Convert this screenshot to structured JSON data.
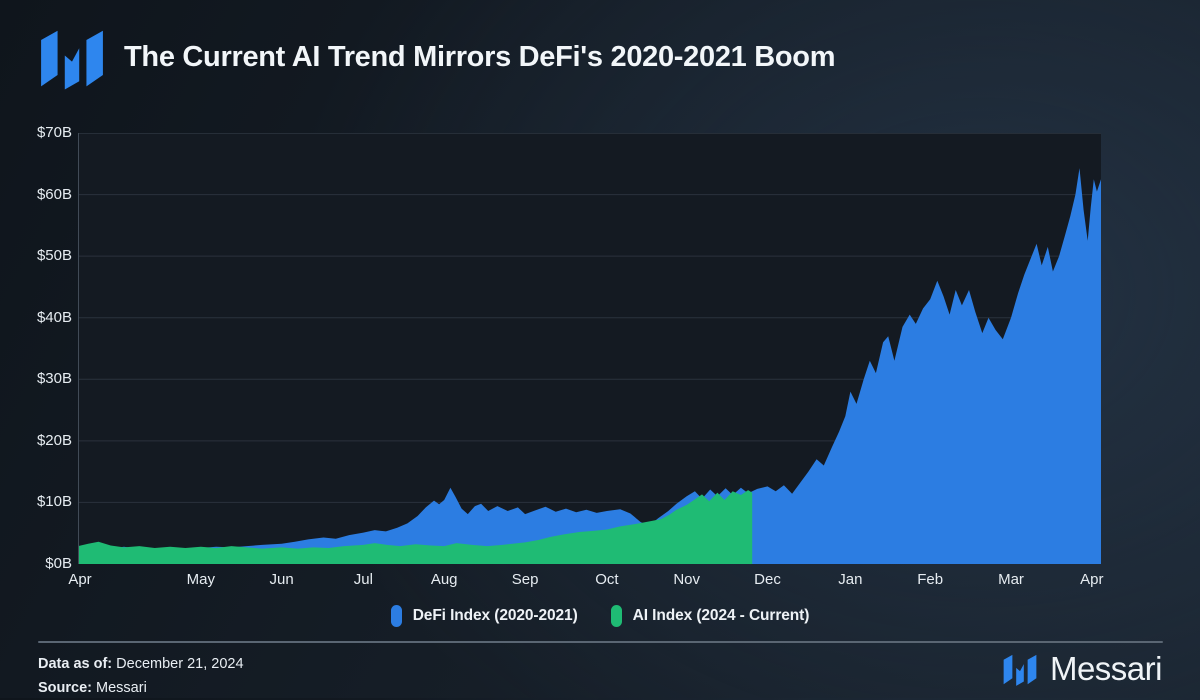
{
  "header": {
    "logo_color": "#2e86ee"
  },
  "chart_data": {
    "type": "area",
    "title": "The Current AI Trend Mirrors DeFi's 2020-2021 Boom",
    "xlabel": "",
    "ylabel": "",
    "ylim": [
      0,
      70
    ],
    "grid": true,
    "legend_position": "bottom",
    "y_ticks": [
      {
        "label": "$0B",
        "value": 0
      },
      {
        "label": "$10B",
        "value": 10
      },
      {
        "label": "$20B",
        "value": 20
      },
      {
        "label": "$30B",
        "value": 30
      },
      {
        "label": "$40B",
        "value": 40
      },
      {
        "label": "$50B",
        "value": 50
      },
      {
        "label": "$60B",
        "value": 60
      },
      {
        "label": "$70B",
        "value": 70
      }
    ],
    "x_ticks": [
      {
        "label": "Apr",
        "pos": 0.002
      },
      {
        "label": "May",
        "pos": 0.12
      },
      {
        "label": "Jun",
        "pos": 0.199
      },
      {
        "label": "Jul",
        "pos": 0.279
      },
      {
        "label": "Aug",
        "pos": 0.358
      },
      {
        "label": "Sep",
        "pos": 0.437
      },
      {
        "label": "Oct",
        "pos": 0.517
      },
      {
        "label": "Nov",
        "pos": 0.595
      },
      {
        "label": "Dec",
        "pos": 0.674
      },
      {
        "label": "Jan",
        "pos": 0.755
      },
      {
        "label": "Feb",
        "pos": 0.833
      },
      {
        "label": "Mar",
        "pos": 0.912
      },
      {
        "label": "Apr",
        "pos": 0.991
      }
    ],
    "series": [
      {
        "name": "DeFi Index (2020-2021)",
        "color": "#2c7de2",
        "unit": "USD billions",
        "points": [
          [
            0.0,
            2.3
          ],
          [
            0.01,
            2.5
          ],
          [
            0.02,
            2.3
          ],
          [
            0.032,
            2.5
          ],
          [
            0.045,
            2.8
          ],
          [
            0.056,
            2.5
          ],
          [
            0.07,
            2.4
          ],
          [
            0.085,
            2.6
          ],
          [
            0.1,
            2.5
          ],
          [
            0.12,
            2.6
          ],
          [
            0.135,
            2.8
          ],
          [
            0.15,
            2.7
          ],
          [
            0.165,
            2.9
          ],
          [
            0.18,
            3.1
          ],
          [
            0.199,
            3.3
          ],
          [
            0.212,
            3.6
          ],
          [
            0.225,
            4.0
          ],
          [
            0.24,
            4.3
          ],
          [
            0.252,
            4.1
          ],
          [
            0.265,
            4.7
          ],
          [
            0.279,
            5.1
          ],
          [
            0.29,
            5.5
          ],
          [
            0.301,
            5.3
          ],
          [
            0.312,
            5.9
          ],
          [
            0.322,
            6.6
          ],
          [
            0.332,
            7.8
          ],
          [
            0.34,
            9.2
          ],
          [
            0.348,
            10.3
          ],
          [
            0.353,
            9.7
          ],
          [
            0.358,
            10.4
          ],
          [
            0.364,
            12.4
          ],
          [
            0.369,
            10.9
          ],
          [
            0.375,
            9.0
          ],
          [
            0.381,
            8.1
          ],
          [
            0.388,
            9.4
          ],
          [
            0.394,
            9.8
          ],
          [
            0.401,
            8.6
          ],
          [
            0.41,
            9.4
          ],
          [
            0.42,
            8.6
          ],
          [
            0.43,
            9.2
          ],
          [
            0.437,
            8.1
          ],
          [
            0.447,
            8.7
          ],
          [
            0.457,
            9.3
          ],
          [
            0.467,
            8.5
          ],
          [
            0.477,
            9.0
          ],
          [
            0.487,
            8.4
          ],
          [
            0.497,
            8.8
          ],
          [
            0.507,
            8.3
          ],
          [
            0.517,
            8.6
          ],
          [
            0.53,
            8.9
          ],
          [
            0.54,
            8.2
          ],
          [
            0.55,
            6.8
          ],
          [
            0.558,
            6.2
          ],
          [
            0.567,
            7.4
          ],
          [
            0.577,
            8.6
          ],
          [
            0.585,
            9.8
          ],
          [
            0.595,
            11.0
          ],
          [
            0.603,
            11.8
          ],
          [
            0.61,
            10.6
          ],
          [
            0.618,
            12.1
          ],
          [
            0.625,
            11.0
          ],
          [
            0.633,
            12.3
          ],
          [
            0.64,
            11.2
          ],
          [
            0.648,
            12.4
          ],
          [
            0.655,
            11.5
          ],
          [
            0.664,
            12.2
          ],
          [
            0.674,
            12.6
          ],
          [
            0.682,
            11.8
          ],
          [
            0.69,
            12.8
          ],
          [
            0.698,
            11.4
          ],
          [
            0.706,
            13.2
          ],
          [
            0.714,
            15.0
          ],
          [
            0.722,
            17.0
          ],
          [
            0.729,
            16.0
          ],
          [
            0.737,
            19.0
          ],
          [
            0.744,
            21.5
          ],
          [
            0.75,
            24.0
          ],
          [
            0.755,
            28.0
          ],
          [
            0.761,
            26.0
          ],
          [
            0.768,
            30.0
          ],
          [
            0.774,
            33.0
          ],
          [
            0.78,
            31.0
          ],
          [
            0.787,
            36.0
          ],
          [
            0.792,
            37.0
          ],
          [
            0.798,
            33.0
          ],
          [
            0.806,
            38.5
          ],
          [
            0.813,
            40.5
          ],
          [
            0.819,
            39.0
          ],
          [
            0.826,
            41.5
          ],
          [
            0.833,
            43.0
          ],
          [
            0.84,
            46.0
          ],
          [
            0.846,
            43.5
          ],
          [
            0.852,
            40.5
          ],
          [
            0.858,
            44.5
          ],
          [
            0.864,
            42.0
          ],
          [
            0.871,
            44.5
          ],
          [
            0.877,
            41.0
          ],
          [
            0.884,
            37.5
          ],
          [
            0.89,
            40.0
          ],
          [
            0.897,
            38.0
          ],
          [
            0.904,
            36.5
          ],
          [
            0.912,
            40.0
          ],
          [
            0.919,
            44.0
          ],
          [
            0.925,
            47.0
          ],
          [
            0.931,
            49.5
          ],
          [
            0.937,
            52.0
          ],
          [
            0.942,
            48.5
          ],
          [
            0.948,
            51.5
          ],
          [
            0.953,
            47.5
          ],
          [
            0.959,
            50.0
          ],
          [
            0.965,
            53.5
          ],
          [
            0.97,
            56.5
          ],
          [
            0.975,
            60.0
          ],
          [
            0.979,
            64.3
          ],
          [
            0.983,
            57.5
          ],
          [
            0.987,
            52.5
          ],
          [
            0.99,
            58.0
          ],
          [
            0.993,
            62.5
          ],
          [
            0.996,
            60.5
          ],
          [
            1.0,
            62.5
          ]
        ]
      },
      {
        "name": "AI Index (2024 - Current)",
        "color": "#1fbb74",
        "unit": "USD billions",
        "points": [
          [
            0.0,
            2.9
          ],
          [
            0.01,
            3.3
          ],
          [
            0.02,
            3.6
          ],
          [
            0.032,
            3.0
          ],
          [
            0.045,
            2.7
          ],
          [
            0.06,
            2.9
          ],
          [
            0.075,
            2.6
          ],
          [
            0.09,
            2.8
          ],
          [
            0.105,
            2.6
          ],
          [
            0.12,
            2.8
          ],
          [
            0.135,
            2.6
          ],
          [
            0.15,
            2.9
          ],
          [
            0.165,
            2.7
          ],
          [
            0.18,
            2.5
          ],
          [
            0.199,
            2.7
          ],
          [
            0.215,
            2.5
          ],
          [
            0.23,
            2.7
          ],
          [
            0.245,
            2.6
          ],
          [
            0.26,
            2.9
          ],
          [
            0.279,
            3.1
          ],
          [
            0.29,
            3.4
          ],
          [
            0.302,
            3.1
          ],
          [
            0.315,
            2.9
          ],
          [
            0.33,
            3.2
          ],
          [
            0.345,
            3.0
          ],
          [
            0.358,
            2.9
          ],
          [
            0.37,
            3.4
          ],
          [
            0.385,
            3.1
          ],
          [
            0.4,
            2.9
          ],
          [
            0.415,
            3.1
          ],
          [
            0.437,
            3.5
          ],
          [
            0.45,
            3.9
          ],
          [
            0.462,
            4.4
          ],
          [
            0.475,
            4.8
          ],
          [
            0.49,
            5.2
          ],
          [
            0.505,
            5.4
          ],
          [
            0.517,
            5.6
          ],
          [
            0.53,
            6.1
          ],
          [
            0.545,
            6.5
          ],
          [
            0.558,
            6.9
          ],
          [
            0.57,
            7.3
          ],
          [
            0.578,
            8.0
          ],
          [
            0.585,
            8.8
          ],
          [
            0.595,
            9.6
          ],
          [
            0.603,
            10.5
          ],
          [
            0.61,
            11.3
          ],
          [
            0.617,
            10.2
          ],
          [
            0.625,
            11.6
          ],
          [
            0.632,
            10.4
          ],
          [
            0.64,
            11.8
          ],
          [
            0.648,
            11.2
          ],
          [
            0.655,
            12.0
          ],
          [
            0.659,
            11.6
          ]
        ]
      }
    ]
  },
  "footer": {
    "data_as_of_label": "Data as of:",
    "data_as_of_value": "December 21, 2024",
    "source_label": "Source:",
    "source_value": "Messari",
    "brand": "Messari"
  }
}
